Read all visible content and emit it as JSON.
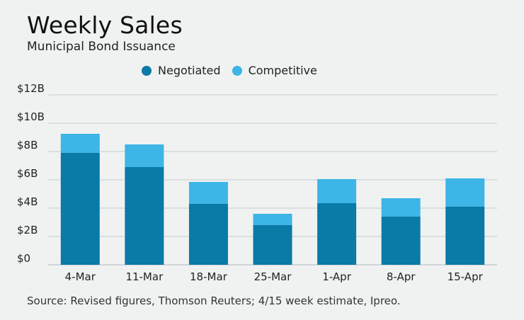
{
  "chart_data": {
    "type": "bar",
    "stacked": true,
    "title": "Weekly Sales",
    "subtitle": "Municipal Bond Issuance",
    "categories": [
      "4-Mar",
      "11-Mar",
      "18-Mar",
      "25-Mar",
      "1-Apr",
      "8-Apr",
      "15-Apr"
    ],
    "series": [
      {
        "name": "Negotiated",
        "color": "#0a7aa6",
        "values": [
          7.9,
          6.9,
          4.3,
          2.8,
          4.35,
          3.4,
          4.1
        ]
      },
      {
        "name": "Competitive",
        "color": "#3db5e6",
        "values": [
          1.35,
          1.6,
          1.55,
          0.8,
          1.7,
          1.3,
          2.0
        ]
      }
    ],
    "y_ticks": [
      "$0",
      "$2B",
      "$4B",
      "$6B",
      "$8B",
      "$10B",
      "$12B"
    ],
    "ylim": [
      0,
      12
    ],
    "grid": true,
    "legend_position": "top",
    "source": "Source: Revised figures, Thomson Reuters; 4/15 week estimate, Ipreo."
  }
}
